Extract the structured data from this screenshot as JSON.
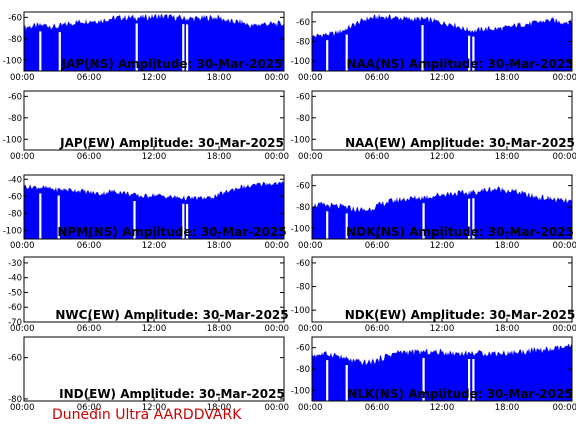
{
  "footer": "Dunedin Ultra AARDDVARK",
  "colors": {
    "fill": "#0000ff",
    "axes": "#000000",
    "background": "#ffffff",
    "footer": "#cc0000"
  },
  "chart_data": [
    {
      "type": "area",
      "title": "JAP(NS) Amplitude: 30-Mar-2025",
      "x_ticks": [
        "00:00",
        "06:00",
        "12:00",
        "18:00",
        "00:00"
      ],
      "y_ticks": [
        "-60",
        "-80",
        "-100"
      ],
      "ylim": [
        -110,
        -55
      ],
      "series": [
        {
          "values": [
            [
              0,
              -69
            ],
            [
              1,
              -68
            ],
            [
              2,
              -67
            ],
            [
              3,
              -69
            ],
            [
              4,
              -66
            ],
            [
              5,
              -64
            ],
            [
              6,
              -63
            ],
            [
              7,
              -63
            ],
            [
              8,
              -61
            ],
            [
              9,
              -60
            ],
            [
              10,
              -60
            ],
            [
              11,
              -60
            ],
            [
              12,
              -59
            ],
            [
              13,
              -59
            ],
            [
              14,
              -60
            ],
            [
              15,
              -61
            ],
            [
              16,
              -61
            ],
            [
              17,
              -60
            ],
            [
              18,
              -60
            ],
            [
              19,
              -64
            ],
            [
              20,
              -64
            ],
            [
              21,
              -68
            ],
            [
              22,
              -66
            ],
            [
              23,
              -66
            ],
            [
              24,
              -66
            ]
          ]
        }
      ],
      "gaps_h": [
        [
          1.4,
          1.6
        ],
        [
          3.2,
          3.4
        ],
        [
          10.3,
          10.5
        ],
        [
          14.6,
          14.8
        ],
        [
          14.95,
          15.15
        ]
      ]
    },
    {
      "type": "area",
      "title": "NAA(NS) Amplitude: 30-Mar-2025",
      "x_ticks": [
        "00:00",
        "06:00",
        "12:00",
        "18:00",
        "00:00"
      ],
      "y_ticks": [
        "-60",
        "-80",
        "-100"
      ],
      "ylim": [
        -110,
        -50
      ],
      "series": [
        {
          "values": [
            [
              0,
              -75
            ],
            [
              1,
              -73
            ],
            [
              2,
              -72
            ],
            [
              3,
              -68
            ],
            [
              4,
              -62
            ],
            [
              5,
              -57
            ],
            [
              6,
              -55
            ],
            [
              7,
              -55
            ],
            [
              8,
              -56
            ],
            [
              9,
              -57
            ],
            [
              10,
              -57
            ],
            [
              11,
              -58
            ],
            [
              12,
              -61
            ],
            [
              13,
              -62
            ],
            [
              14,
              -67
            ],
            [
              15,
              -69
            ],
            [
              16,
              -67
            ],
            [
              17,
              -67
            ],
            [
              18,
              -66
            ],
            [
              19,
              -63
            ],
            [
              20,
              -62
            ],
            [
              21,
              -60
            ],
            [
              22,
              -58
            ],
            [
              23,
              -60
            ],
            [
              24,
              -60
            ]
          ]
        }
      ],
      "gaps_h": [
        [
          1.3,
          1.5
        ],
        [
          3.1,
          3.3
        ],
        [
          10.1,
          10.3
        ],
        [
          14.4,
          14.6
        ],
        [
          14.8,
          15.0
        ]
      ]
    },
    {
      "type": "area",
      "title": "JAP(EW) Amplitude: 30-Mar-2025",
      "x_ticks": [
        "00:00",
        "06:00",
        "12:00",
        "18:00",
        "00:00"
      ],
      "y_ticks": [
        "-60",
        "-80",
        "-100"
      ],
      "ylim": [
        -110,
        -55
      ],
      "series": [
        {
          "values": []
        }
      ],
      "gaps_h": []
    },
    {
      "type": "area",
      "title": "NAA(EW) Amplitude: 30-Mar-2025",
      "x_ticks": [
        "00:00",
        "06:00",
        "12:00",
        "18:00",
        "00:00"
      ],
      "y_ticks": [
        "-60",
        "-80",
        "-100"
      ],
      "ylim": [
        -110,
        -55
      ],
      "series": [
        {
          "values": []
        }
      ],
      "gaps_h": []
    },
    {
      "type": "area",
      "title": "NPM(NS) Amplitude: 30-Mar-2025",
      "x_ticks": [
        "00:00",
        "06:00",
        "12:00",
        "18:00",
        "00:00"
      ],
      "y_ticks": [
        "-40",
        "-60",
        "-80",
        "-100"
      ],
      "ylim": [
        -110,
        -35
      ],
      "series": [
        {
          "values": [
            [
              0,
              -48
            ],
            [
              1,
              -49
            ],
            [
              2,
              -50
            ],
            [
              3,
              -52
            ],
            [
              4,
              -52
            ],
            [
              5,
              -53
            ],
            [
              6,
              -55
            ],
            [
              7,
              -57
            ],
            [
              8,
              -54
            ],
            [
              9,
              -55
            ],
            [
              10,
              -58
            ],
            [
              11,
              -60
            ],
            [
              12,
              -58
            ],
            [
              13,
              -60
            ],
            [
              14,
              -61
            ],
            [
              15,
              -62
            ],
            [
              16,
              -62
            ],
            [
              17,
              -62
            ],
            [
              18,
              -58
            ],
            [
              19,
              -53
            ],
            [
              20,
              -49
            ],
            [
              21,
              -48
            ],
            [
              22,
              -45
            ],
            [
              23,
              -45
            ],
            [
              24,
              -45
            ]
          ]
        }
      ],
      "gaps_h": [
        [
          1.4,
          1.6
        ],
        [
          3.1,
          3.3
        ],
        [
          10.1,
          10.3
        ],
        [
          14.6,
          14.8
        ],
        [
          14.95,
          15.15
        ]
      ]
    },
    {
      "type": "area",
      "title": "NDK(NS) Amplitude: 30-Mar-2025",
      "x_ticks": [
        "00:00",
        "06:00",
        "12:00",
        "18:00",
        "00:00"
      ],
      "y_ticks": [
        "-60",
        "-80",
        "-100"
      ],
      "ylim": [
        -110,
        -50
      ],
      "series": [
        {
          "values": [
            [
              0,
              -78
            ],
            [
              1,
              -78
            ],
            [
              2,
              -79
            ],
            [
              3,
              -80
            ],
            [
              4,
              -82
            ],
            [
              5,
              -83
            ],
            [
              6,
              -79
            ],
            [
              7,
              -75
            ],
            [
              8,
              -73
            ],
            [
              9,
              -72
            ],
            [
              10,
              -71
            ],
            [
              11,
              -70
            ],
            [
              12,
              -68
            ],
            [
              13,
              -67
            ],
            [
              14,
              -67
            ],
            [
              15,
              -66
            ],
            [
              16,
              -64
            ],
            [
              17,
              -63
            ],
            [
              18,
              -64
            ],
            [
              19,
              -66
            ],
            [
              20,
              -69
            ],
            [
              21,
              -71
            ],
            [
              22,
              -72
            ],
            [
              23,
              -74
            ],
            [
              24,
              -75
            ]
          ]
        }
      ],
      "gaps_h": [
        [
          1.3,
          1.5
        ],
        [
          3.1,
          3.3
        ],
        [
          10.2,
          10.4
        ],
        [
          14.4,
          14.6
        ],
        [
          14.8,
          15.0
        ]
      ]
    },
    {
      "type": "area",
      "title": "NWC(EW) Amplitude: 30-Mar-2025",
      "x_ticks": [
        "00:00",
        "06:00",
        "12:00",
        "18:00",
        "00:00"
      ],
      "y_ticks": [
        "-30",
        "-40",
        "-50",
        "-60",
        "-70"
      ],
      "ylim": [
        -70,
        -26
      ],
      "series": [
        {
          "values": []
        }
      ],
      "gaps_h": []
    },
    {
      "type": "area",
      "title": "NDK(EW) Amplitude: 30-Mar-2025",
      "x_ticks": [
        "00:00",
        "06:00",
        "12:00",
        "18:00",
        "00:00"
      ],
      "y_ticks": [
        "-60",
        "-80",
        "-100"
      ],
      "ylim": [
        -110,
        -55
      ],
      "series": [
        {
          "values": []
        }
      ],
      "gaps_h": []
    },
    {
      "type": "area",
      "title": "IND(EW) Amplitude: 30-Mar-2025",
      "x_ticks": [
        "00:00",
        "06:00",
        "12:00",
        "18:00",
        "00:00"
      ],
      "y_ticks": [
        "-60",
        "-80"
      ],
      "ylim": [
        -81,
        -50
      ],
      "series": [
        {
          "values": []
        }
      ],
      "gaps_h": []
    },
    {
      "type": "area",
      "title": "NLK(NS) Amplitude: 30-Mar-2025",
      "x_ticks": [
        "00:00",
        "06:00",
        "12:00",
        "18:00",
        "00:00"
      ],
      "y_ticks": [
        "-60",
        "-80",
        "-100"
      ],
      "ylim": [
        -110,
        -50
      ],
      "series": [
        {
          "values": [
            [
              0,
              -67
            ],
            [
              1,
              -66
            ],
            [
              2,
              -66
            ],
            [
              3,
              -70
            ],
            [
              4,
              -73
            ],
            [
              5,
              -74
            ],
            [
              6,
              -72
            ],
            [
              7,
              -67
            ],
            [
              8,
              -64
            ],
            [
              9,
              -64
            ],
            [
              10,
              -64
            ],
            [
              11,
              -64
            ],
            [
              12,
              -64
            ],
            [
              13,
              -65
            ],
            [
              14,
              -65
            ],
            [
              15,
              -65
            ],
            [
              16,
              -65
            ],
            [
              17,
              -65
            ],
            [
              18,
              -65
            ],
            [
              19,
              -64
            ],
            [
              20,
              -63
            ],
            [
              21,
              -62
            ],
            [
              22,
              -62
            ],
            [
              23,
              -60
            ],
            [
              24,
              -59
            ]
          ]
        }
      ],
      "gaps_h": [
        [
          1.3,
          1.5
        ],
        [
          3.1,
          3.3
        ],
        [
          10.2,
          10.4
        ],
        [
          14.4,
          14.6
        ],
        [
          14.8,
          15.0
        ]
      ]
    }
  ]
}
